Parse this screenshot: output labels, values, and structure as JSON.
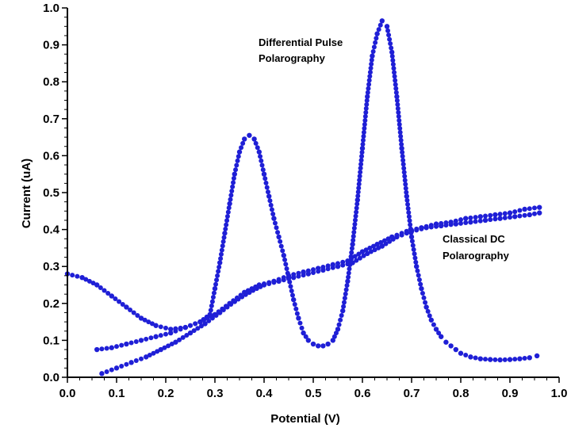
{
  "chart_data": {
    "type": "scatter",
    "title": "",
    "xlabel": "Potential (V)",
    "ylabel": "Current (uA)",
    "xlim": [
      0.0,
      1.0
    ],
    "ylim": [
      0.0,
      1.0
    ],
    "x_ticks": [
      "0.0",
      "0.1",
      "0.2",
      "0.3",
      "0.4",
      "0.5",
      "0.6",
      "0.7",
      "0.8",
      "0.9",
      "1.0"
    ],
    "y_ticks": [
      "0.0",
      "0.1",
      "0.2",
      "0.3",
      "0.4",
      "0.5",
      "0.6",
      "0.7",
      "0.8",
      "0.9",
      "1.0"
    ],
    "grid": false,
    "marker_color": "#1f1fd6",
    "annotations": [
      {
        "lines": [
          "Differential Pulse",
          "Polarography"
        ],
        "near": "upper-center"
      },
      {
        "lines": [
          "Classical DC",
          "Polarography"
        ],
        "near": "right"
      }
    ],
    "series": [
      {
        "name": "Differential Pulse Polarography (forward)",
        "x": [
          0.0,
          0.03,
          0.06,
          0.09,
          0.12,
          0.15,
          0.18,
          0.21,
          0.24,
          0.27,
          0.29,
          0.3,
          0.31,
          0.32,
          0.33,
          0.34,
          0.35,
          0.36,
          0.37,
          0.38,
          0.39,
          0.4,
          0.41,
          0.42,
          0.43,
          0.44,
          0.45,
          0.46,
          0.47,
          0.48,
          0.49,
          0.5,
          0.51,
          0.52,
          0.53,
          0.54,
          0.55,
          0.56,
          0.57,
          0.58,
          0.59,
          0.6,
          0.61,
          0.62,
          0.63,
          0.64,
          0.65,
          0.66,
          0.67,
          0.68,
          0.69,
          0.7,
          0.71,
          0.72,
          0.73,
          0.74,
          0.75,
          0.76,
          0.77,
          0.78,
          0.79,
          0.8,
          0.82,
          0.84,
          0.86,
          0.88,
          0.9,
          0.92,
          0.94,
          0.955
        ],
        "y": [
          0.28,
          0.27,
          0.25,
          0.22,
          0.19,
          0.16,
          0.14,
          0.13,
          0.135,
          0.15,
          0.17,
          0.24,
          0.31,
          0.39,
          0.47,
          0.55,
          0.61,
          0.645,
          0.655,
          0.645,
          0.61,
          0.55,
          0.49,
          0.43,
          0.38,
          0.33,
          0.27,
          0.21,
          0.16,
          0.12,
          0.1,
          0.09,
          0.085,
          0.085,
          0.09,
          0.1,
          0.13,
          0.18,
          0.26,
          0.36,
          0.48,
          0.62,
          0.76,
          0.87,
          0.93,
          0.965,
          0.95,
          0.88,
          0.76,
          0.62,
          0.49,
          0.38,
          0.3,
          0.24,
          0.19,
          0.155,
          0.13,
          0.11,
          0.095,
          0.085,
          0.075,
          0.065,
          0.055,
          0.05,
          0.048,
          0.047,
          0.048,
          0.05,
          0.053,
          0.058
        ]
      },
      {
        "name": "Classical DC Polarography (lower)",
        "x": [
          0.07,
          0.1,
          0.13,
          0.16,
          0.19,
          0.22,
          0.25,
          0.28,
          0.31,
          0.34,
          0.37,
          0.4,
          0.43,
          0.46,
          0.49,
          0.52,
          0.55,
          0.58,
          0.61,
          0.64,
          0.67,
          0.7,
          0.73,
          0.76,
          0.79,
          0.82,
          0.85,
          0.88,
          0.91,
          0.94,
          0.96
        ],
        "y": [
          0.01,
          0.025,
          0.04,
          0.055,
          0.075,
          0.095,
          0.12,
          0.145,
          0.175,
          0.205,
          0.23,
          0.25,
          0.26,
          0.27,
          0.28,
          0.29,
          0.3,
          0.31,
          0.335,
          0.355,
          0.38,
          0.395,
          0.405,
          0.41,
          0.415,
          0.42,
          0.425,
          0.43,
          0.435,
          0.44,
          0.445
        ]
      },
      {
        "name": "Classical DC Polarography (upper)",
        "x": [
          0.06,
          0.09,
          0.12,
          0.15,
          0.18,
          0.21,
          0.24,
          0.27,
          0.3,
          0.33,
          0.36,
          0.39,
          0.42,
          0.45,
          0.48,
          0.51,
          0.54,
          0.57,
          0.6,
          0.63,
          0.66,
          0.69,
          0.72,
          0.75,
          0.78,
          0.81,
          0.84,
          0.87,
          0.9,
          0.93,
          0.96
        ],
        "y": [
          0.075,
          0.08,
          0.09,
          0.1,
          0.11,
          0.12,
          0.135,
          0.15,
          0.17,
          0.2,
          0.23,
          0.25,
          0.26,
          0.275,
          0.285,
          0.295,
          0.305,
          0.315,
          0.34,
          0.36,
          0.38,
          0.395,
          0.405,
          0.415,
          0.42,
          0.43,
          0.435,
          0.44,
          0.445,
          0.455,
          0.46
        ]
      }
    ]
  }
}
